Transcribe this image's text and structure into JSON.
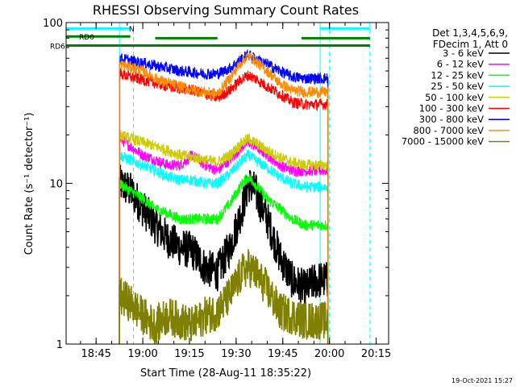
{
  "chart_data": {
    "type": "line",
    "title": "RHESSI Observing Summary Count Rates",
    "xlabel": "Start Time (28-Aug-11 18:35:22)",
    "ylabel": "Count Rate (s⁻¹ detector⁻¹)",
    "y_scale": "log",
    "ylim": [
      1,
      100
    ],
    "xlim": [
      "18:35:22",
      "20:19:00"
    ],
    "x_ticks": [
      "18:45",
      "19:00",
      "19:15",
      "19:30",
      "19:45",
      "20:00",
      "20:15"
    ],
    "y_ticks": [
      "1",
      "10",
      "100"
    ],
    "legend": {
      "header_lines": [
        "Det 1,3,4,5,6,9,",
        "FDecim 1, Att 0"
      ],
      "placement": "right",
      "entries": [
        {
          "label": "3 - 6 keV",
          "color": "#000000"
        },
        {
          "label": "6 - 12 keV",
          "color": "#ff00ff"
        },
        {
          "label": "12 - 25 keV",
          "color": "#00ff00"
        },
        {
          "label": "25 - 50 keV",
          "color": "#00ffff"
        },
        {
          "label": "50 - 100 keV",
          "color": "#cccc00"
        },
        {
          "label": "100 - 300 keV",
          "color": "#ff0000"
        },
        {
          "label": "300 - 800 keV",
          "color": "#0000ff"
        },
        {
          "label": "800 - 7000 keV",
          "color": "#ff8c00"
        },
        {
          "label": "7000 - 15000 keV",
          "color": "#808000"
        }
      ]
    },
    "flag_bars": [
      {
        "label": "N",
        "color": "#00ffff",
        "start": "18:35:22",
        "end": "18:56:00",
        "level": 92
      },
      {
        "label": "RD0",
        "color": "#008000",
        "start": "18:35:22",
        "end": "18:56:00",
        "level": 82
      },
      {
        "label": "RD6",
        "color": "#008000",
        "start": "18:35:22",
        "end": "20:13:00",
        "level": 72
      },
      {
        "label": "",
        "color": "#008000",
        "start": "19:04:00",
        "end": "19:24:00",
        "level": 80
      },
      {
        "label": "",
        "color": "#008000",
        "start": "19:51:00",
        "end": "20:13:00",
        "level": 80
      },
      {
        "label": "",
        "color": "#00ffff",
        "start": "19:57:00",
        "end": "20:13:00",
        "level": 92
      }
    ],
    "vlines": [
      {
        "time": "18:52:30",
        "color": "#00ffff",
        "style": "solid"
      },
      {
        "time": "18:57:00",
        "color": "#00ffff",
        "style": "dashed"
      },
      {
        "time": "19:57:00",
        "color": "#00ffff",
        "style": "solid"
      },
      {
        "time": "20:00:00",
        "color": "#00ffff",
        "style": "dashed"
      },
      {
        "time": "20:13:00",
        "color": "#00ffff",
        "style": "dashed"
      }
    ],
    "data_gaps": [
      {
        "start": "18:35:22",
        "end": "18:52:30"
      },
      {
        "start": "19:59:30",
        "end": "20:19:00"
      }
    ],
    "series": [
      {
        "name": "3 - 6 keV",
        "color": "#000000",
        "x": [
          "18:52:30",
          "18:56:00",
          "19:00:00",
          "19:04:00",
          "19:08:00",
          "19:12:00",
          "19:16:00",
          "19:20:00",
          "19:24:00",
          "19:28:00",
          "19:32:00",
          "19:34:00",
          "19:36:00",
          "19:40:00",
          "19:44:00",
          "19:48:00",
          "19:52:00",
          "19:56:00",
          "19:59:30"
        ],
        "y": [
          10,
          9,
          7,
          5.5,
          4.5,
          4,
          3.8,
          3,
          2.8,
          4,
          7,
          10,
          9,
          6,
          3.5,
          2.5,
          2.2,
          2.5,
          2.5
        ]
      },
      {
        "name": "6 - 12 keV",
        "color": "#ff00ff",
        "x": [
          "18:52:30",
          "18:56:00",
          "19:00:00",
          "19:04:00",
          "19:08:00",
          "19:12:00",
          "19:16:00",
          "19:20:00",
          "19:24:00",
          "19:28:00",
          "19:32:00",
          "19:34:00",
          "19:36:00",
          "19:40:00",
          "19:44:00",
          "19:48:00",
          "19:52:00",
          "19:56:00",
          "19:59:30"
        ],
        "y": [
          19,
          17,
          15,
          14,
          13,
          13,
          15,
          13,
          12,
          14,
          17,
          18,
          17,
          15,
          13,
          12,
          12,
          12,
          12
        ]
      },
      {
        "name": "12 - 25 keV",
        "color": "#00ff00",
        "x": [
          "18:52:30",
          "18:56:00",
          "19:00:00",
          "19:04:00",
          "19:08:00",
          "19:12:00",
          "19:16:00",
          "19:20:00",
          "19:24:00",
          "19:28:00",
          "19:32:00",
          "19:34:00",
          "19:36:00",
          "19:40:00",
          "19:44:00",
          "19:48:00",
          "19:52:00",
          "19:56:00",
          "19:59:30"
        ],
        "y": [
          10,
          9,
          8,
          7,
          6.5,
          6,
          6,
          6,
          6,
          7.5,
          10,
          11,
          10,
          8,
          7,
          6,
          5.5,
          5.5,
          5.5
        ]
      },
      {
        "name": "25 - 50 keV",
        "color": "#00ffff",
        "x": [
          "18:52:30",
          "18:56:00",
          "19:00:00",
          "19:04:00",
          "19:08:00",
          "19:12:00",
          "19:16:00",
          "19:20:00",
          "19:24:00",
          "19:28:00",
          "19:32:00",
          "19:34:00",
          "19:36:00",
          "19:40:00",
          "19:44:00",
          "19:48:00",
          "19:52:00",
          "19:56:00",
          "19:59:30"
        ],
        "y": [
          15,
          14,
          13,
          12,
          11,
          10.5,
          10.5,
          10,
          10,
          11.5,
          14,
          15,
          14,
          12.5,
          11,
          10,
          9.5,
          9.5,
          9.5
        ]
      },
      {
        "name": "50 - 100 keV",
        "color": "#cccc00",
        "x": [
          "18:52:30",
          "18:56:00",
          "19:00:00",
          "19:04:00",
          "19:08:00",
          "19:12:00",
          "19:16:00",
          "19:20:00",
          "19:24:00",
          "19:28:00",
          "19:32:00",
          "19:34:00",
          "19:36:00",
          "19:40:00",
          "19:44:00",
          "19:48:00",
          "19:52:00",
          "19:56:00",
          "19:59:30"
        ],
        "y": [
          20,
          19,
          18,
          17,
          16,
          15,
          14.5,
          14,
          13.5,
          15,
          18,
          19,
          18,
          16,
          14.5,
          13.5,
          13,
          13,
          13
        ]
      },
      {
        "name": "100 - 300 keV",
        "color": "#ff0000",
        "x": [
          "18:52:30",
          "18:56:00",
          "19:00:00",
          "19:04:00",
          "19:08:00",
          "19:12:00",
          "19:16:00",
          "19:20:00",
          "19:24:00",
          "19:28:00",
          "19:32:00",
          "19:34:00",
          "19:36:00",
          "19:40:00",
          "19:44:00",
          "19:48:00",
          "19:52:00",
          "19:56:00",
          "19:59:30"
        ],
        "y": [
          48,
          46,
          44,
          42,
          40,
          39,
          38,
          36,
          34,
          38,
          45,
          47,
          45,
          40,
          36,
          32,
          31,
          31,
          31
        ]
      },
      {
        "name": "300 - 800 keV",
        "color": "#0000ff",
        "x": [
          "18:52:30",
          "18:56:00",
          "19:00:00",
          "19:04:00",
          "19:08:00",
          "19:12:00",
          "19:16:00",
          "19:20:00",
          "19:24:00",
          "19:28:00",
          "19:32:00",
          "19:34:00",
          "19:36:00",
          "19:40:00",
          "19:44:00",
          "19:48:00",
          "19:52:00",
          "19:56:00",
          "19:59:30"
        ],
        "y": [
          60,
          58,
          56,
          54,
          52,
          50,
          49,
          48,
          48,
          52,
          60,
          63,
          60,
          55,
          50,
          46,
          45,
          45,
          45
        ]
      },
      {
        "name": "800 - 7000 keV",
        "color": "#ff8c00",
        "x": [
          "18:52:30",
          "18:56:00",
          "19:00:00",
          "19:04:00",
          "19:08:00",
          "19:12:00",
          "19:16:00",
          "19:20:00",
          "19:24:00",
          "19:28:00",
          "19:32:00",
          "19:34:00",
          "19:36:00",
          "19:40:00",
          "19:44:00",
          "19:48:00",
          "19:52:00",
          "19:56:00",
          "19:59:30"
        ],
        "y": [
          55,
          53,
          50,
          45,
          42,
          40,
          38,
          37,
          36,
          45,
          58,
          62,
          58,
          50,
          42,
          38,
          37,
          37,
          37
        ]
      },
      {
        "name": "7000 - 15000 keV",
        "color": "#808000",
        "x": [
          "18:52:30",
          "18:56:00",
          "19:00:00",
          "19:04:00",
          "19:08:00",
          "19:12:00",
          "19:16:00",
          "19:20:00",
          "19:24:00",
          "19:28:00",
          "19:32:00",
          "19:34:00",
          "19:36:00",
          "19:40:00",
          "19:44:00",
          "19:48:00",
          "19:52:00",
          "19:56:00",
          "19:59:30"
        ],
        "y": [
          2,
          1.8,
          1.5,
          1.3,
          1.5,
          1.4,
          1.3,
          1.5,
          1.6,
          2,
          2.8,
          3,
          2.8,
          2.2,
          1.6,
          1.5,
          1.4,
          1.4,
          1.4
        ]
      }
    ]
  },
  "footer": {
    "timestamp": "19-Oct-2021 15:27"
  }
}
